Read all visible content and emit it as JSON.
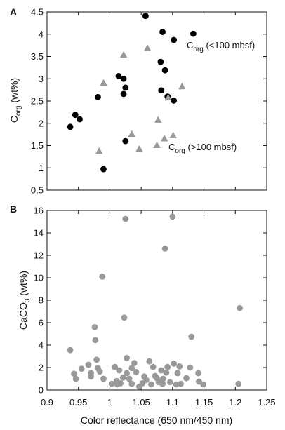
{
  "chart_data": [
    {
      "type": "scatter",
      "panel_label": "A",
      "xlim": [
        0.9,
        1.25
      ],
      "ylim": [
        0.5,
        4.5
      ],
      "x_ticks": [
        "0.9",
        "0.95",
        "1",
        "1.05",
        "1.1",
        "1.15",
        "1.2",
        "1.25"
      ],
      "y_ticks": [
        "0.5",
        "1",
        "1.5",
        "2",
        "2.5",
        "3",
        "3.5",
        "4",
        "4.5"
      ],
      "ylabel": {
        "main": "C",
        "sub": "org",
        "rest": " (wt%)"
      },
      "series": [
        {
          "name": "C_org (<100 mbsf)",
          "label": {
            "main": "C",
            "sub": "org",
            "rest": " (<100 mbsf)"
          },
          "marker": "circle",
          "color": "#000000",
          "points": [
            [
              0.937,
              1.92
            ],
            [
              0.945,
              2.19
            ],
            [
              0.952,
              2.09
            ],
            [
              0.981,
              2.59
            ],
            [
              0.99,
              0.97
            ],
            [
              1.014,
              3.06
            ],
            [
              1.022,
              3.0
            ],
            [
              1.022,
              2.66
            ],
            [
              1.025,
              2.8
            ],
            [
              1.025,
              1.6
            ],
            [
              1.057,
              4.41
            ],
            [
              1.081,
              3.38
            ],
            [
              1.084,
              4.05
            ],
            [
              1.082,
              2.74
            ],
            [
              1.088,
              3.19
            ],
            [
              1.092,
              2.6
            ],
            [
              1.102,
              3.87
            ],
            [
              1.102,
              2.51
            ],
            [
              1.133,
              4.01
            ]
          ]
        },
        {
          "name": "C_org (>100 mbsf)",
          "label": {
            "main": "C",
            "sub": "org",
            "rest": " (>100 mbsf)"
          },
          "marker": "triangle",
          "color": "#999999",
          "points": [
            [
              0.983,
              1.38
            ],
            [
              0.99,
              2.91
            ],
            [
              1.022,
              3.54
            ],
            [
              1.035,
              1.76
            ],
            [
              1.047,
              1.43
            ],
            [
              1.06,
              3.69
            ],
            [
              1.075,
              1.51
            ],
            [
              1.077,
              2.08
            ],
            [
              1.087,
              1.66
            ],
            [
              1.093,
              2.58
            ],
            [
              1.101,
              1.73
            ],
            [
              1.115,
              2.83
            ]
          ]
        }
      ]
    },
    {
      "type": "scatter",
      "panel_label": "B",
      "xlim": [
        0.9,
        1.25
      ],
      "ylim": [
        0,
        16
      ],
      "x_ticks": [
        "0.9",
        "0.95",
        "1",
        "1.05",
        "1.1",
        "1.15",
        "1.2",
        "1.25"
      ],
      "y_ticks": [
        "0",
        "2",
        "4",
        "6",
        "8",
        "10",
        "12",
        "14",
        "16"
      ],
      "xlabel": "Color reflectance (650 nm/450 nm)",
      "ylabel": {
        "main": "CaCO",
        "sub": "3",
        "rest": " (wt%)"
      },
      "series": [
        {
          "name": "CaCO3",
          "marker": "circle",
          "color": "#999999",
          "points": [
            [
              0.937,
              3.55
            ],
            [
              0.943,
              1.45
            ],
            [
              0.946,
              1.0
            ],
            [
              0.955,
              1.9
            ],
            [
              0.966,
              2.25
            ],
            [
              0.97,
              1.5
            ],
            [
              0.97,
              1.2
            ],
            [
              0.976,
              5.6
            ],
            [
              0.977,
              4.45
            ],
            [
              0.979,
              2.7
            ],
            [
              0.981,
              1.95
            ],
            [
              0.984,
              1.65
            ],
            [
              0.988,
              10.1
            ],
            [
              0.99,
              1.0
            ],
            [
              1.003,
              0.55
            ],
            [
              1.008,
              2.05
            ],
            [
              1.011,
              0.8
            ],
            [
              1.012,
              0.5
            ],
            [
              1.015,
              1.75
            ],
            [
              1.017,
              0.6
            ],
            [
              1.021,
              1.1
            ],
            [
              1.023,
              6.45
            ],
            [
              1.025,
              15.25
            ],
            [
              1.027,
              2.85
            ],
            [
              1.027,
              1.5
            ],
            [
              1.031,
              1.0
            ],
            [
              1.035,
              0.55
            ],
            [
              1.035,
              1.95
            ],
            [
              1.039,
              2.4
            ],
            [
              1.042,
              1.6
            ],
            [
              1.047,
              0.3
            ],
            [
              1.052,
              0.6
            ],
            [
              1.055,
              1.2
            ],
            [
              1.058,
              0.9
            ],
            [
              1.063,
              2.55
            ],
            [
              1.066,
              0.5
            ],
            [
              1.069,
              2.05
            ],
            [
              1.072,
              1.25
            ],
            [
              1.075,
              1.05
            ],
            [
              1.078,
              0.7
            ],
            [
              1.082,
              1.75
            ],
            [
              1.084,
              0.55
            ],
            [
              1.085,
              1.0
            ],
            [
              1.088,
              12.6
            ],
            [
              1.09,
              1.55
            ],
            [
              1.092,
              2.05
            ],
            [
              1.096,
              0.7
            ],
            [
              1.1,
              15.45
            ],
            [
              1.102,
              2.35
            ],
            [
              1.106,
              0.5
            ],
            [
              1.108,
              1.5
            ],
            [
              1.111,
              2.1
            ],
            [
              1.113,
              0.55
            ],
            [
              1.122,
              1.05
            ],
            [
              1.128,
              2.0
            ],
            [
              1.13,
              4.75
            ],
            [
              1.141,
              1.5
            ],
            [
              1.142,
              0.75
            ],
            [
              1.149,
              0.5
            ],
            [
              1.205,
              0.55
            ],
            [
              1.207,
              7.3
            ]
          ]
        }
      ]
    }
  ]
}
